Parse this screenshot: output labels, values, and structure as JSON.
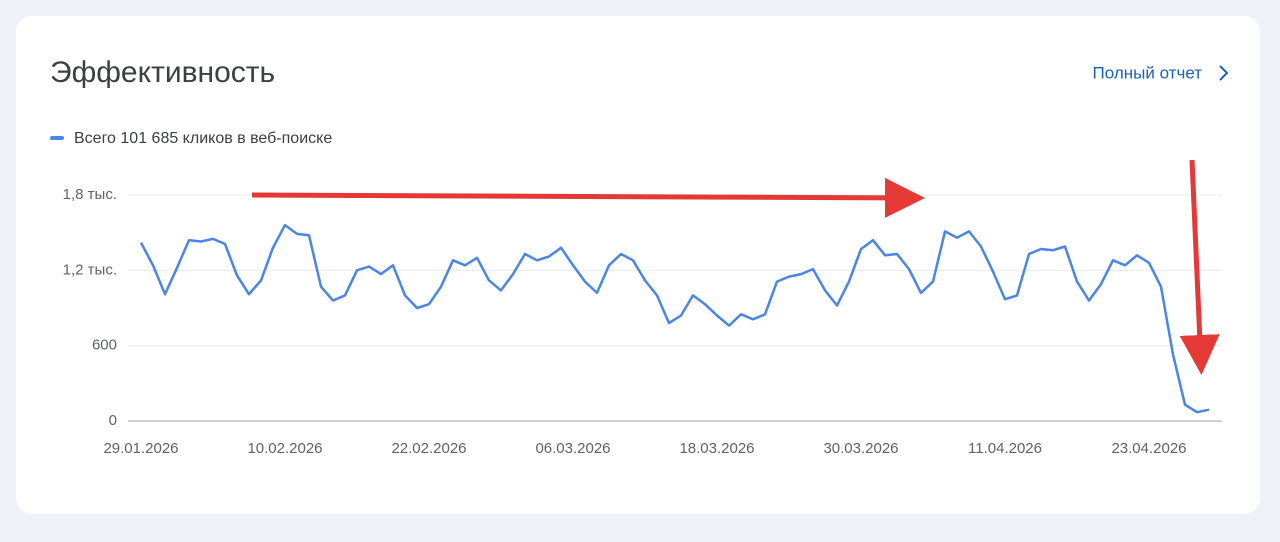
{
  "chart_data": {
    "type": "line",
    "title": "Эффективность",
    "categories": [
      "29.01.2026",
      null,
      null,
      null,
      null,
      null,
      null,
      null,
      null,
      null,
      null,
      null,
      "10.02.2026",
      null,
      null,
      null,
      null,
      null,
      null,
      null,
      null,
      null,
      null,
      null,
      "22.02.2026",
      null,
      null,
      null,
      null,
      null,
      null,
      null,
      null,
      null,
      null,
      null,
      "06.03.2026",
      null,
      null,
      null,
      null,
      null,
      null,
      null,
      null,
      null,
      null,
      null,
      "18.03.2026",
      null,
      null,
      null,
      null,
      null,
      null,
      null,
      null,
      null,
      null,
      null,
      "30.03.2026",
      null,
      null,
      null,
      null,
      null,
      null,
      null,
      null,
      null,
      null,
      null,
      "11.04.2026",
      null,
      null,
      null,
      null,
      null,
      null,
      null,
      null,
      null,
      null,
      null,
      "23.04.2026",
      null,
      null,
      null,
      null,
      null
    ],
    "series": [
      {
        "name": "Всего 101 685 кликов в веб-поиске",
        "color": "#4a86e8",
        "values": [
          1420,
          1240,
          1010,
          1220,
          1440,
          1430,
          1450,
          1410,
          1160,
          1010,
          1120,
          1380,
          1560,
          1490,
          1480,
          1070,
          960,
          1000,
          1200,
          1230,
          1170,
          1240,
          1000,
          900,
          930,
          1070,
          1280,
          1240,
          1300,
          1120,
          1040,
          1170,
          1330,
          1280,
          1310,
          1380,
          1240,
          1110,
          1020,
          1240,
          1330,
          1280,
          1120,
          1000,
          780,
          840,
          1000,
          930,
          840,
          760,
          850,
          810,
          850,
          1110,
          1150,
          1170,
          1210,
          1040,
          920,
          1110,
          1370,
          1440,
          1320,
          1330,
          1210,
          1020,
          1110,
          1510,
          1460,
          1510,
          1390,
          1190,
          970,
          1000,
          1330,
          1370,
          1360,
          1390,
          1110,
          960,
          1090,
          1280,
          1240,
          1320,
          1260,
          1070,
          530,
          130,
          70,
          90
        ]
      }
    ],
    "ylim": [
      0,
      1800
    ],
    "yticks": [
      0,
      600,
      {
        "value": 1200,
        "label": "1,2 тыс."
      },
      {
        "value": 1800,
        "label": "1,8 тыс."
      }
    ],
    "grid": true
  },
  "link": "Полный отчет"
}
